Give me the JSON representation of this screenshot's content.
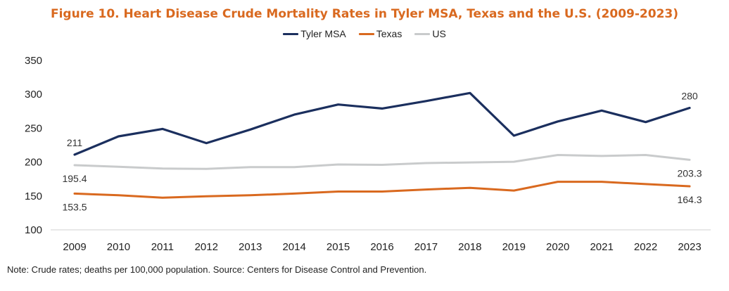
{
  "chart_data": {
    "type": "line",
    "title": "Figure 10. Heart Disease Crude Mortality Rates in Tyler MSA, Texas and the U.S. (2009-2023)",
    "xlabel": "",
    "ylabel": "",
    "ylim": [
      100,
      350
    ],
    "yticks": [
      100,
      150,
      200,
      250,
      300,
      350
    ],
    "grid": false,
    "legend_position": "top-center",
    "categories": [
      "2009",
      "2010",
      "2011",
      "2012",
      "2013",
      "2014",
      "2015",
      "2016",
      "2017",
      "2018",
      "2019",
      "2020",
      "2021",
      "2022",
      "2023"
    ],
    "series": [
      {
        "name": "Tyler MSA",
        "color": "#1b2f5e",
        "values": [
          211,
          238,
          249,
          228,
          248,
          270,
          285,
          279,
          290,
          302,
          239,
          260,
          276,
          259,
          280
        ]
      },
      {
        "name": "Texas",
        "color": "#d9691f",
        "values": [
          153.5,
          151,
          147.5,
          149.5,
          151,
          153.5,
          156.5,
          156.5,
          159.5,
          162,
          158,
          171,
          171,
          167.5,
          164.3
        ]
      },
      {
        "name": "US",
        "color": "#c9cbcc",
        "values": [
          195.4,
          193,
          190.5,
          190,
          192.5,
          192.5,
          196.5,
          196,
          198.5,
          199.5,
          200.5,
          210.5,
          209,
          210.5,
          203.3
        ]
      }
    ],
    "data_labels": [
      {
        "series": "Tyler MSA",
        "index": 0,
        "text": "211",
        "placement": "above"
      },
      {
        "series": "Tyler MSA",
        "index": 14,
        "text": "280",
        "placement": "above"
      },
      {
        "series": "US",
        "index": 0,
        "text": "195.4",
        "placement": "below"
      },
      {
        "series": "US",
        "index": 14,
        "text": "203.3",
        "placement": "below"
      },
      {
        "series": "Texas",
        "index": 0,
        "text": "153.5",
        "placement": "below"
      },
      {
        "series": "Texas",
        "index": 14,
        "text": "164.3",
        "placement": "below"
      }
    ]
  },
  "note": "Note: Crude rates; deaths per 100,000 population. Source: Centers for Disease Control and Prevention."
}
